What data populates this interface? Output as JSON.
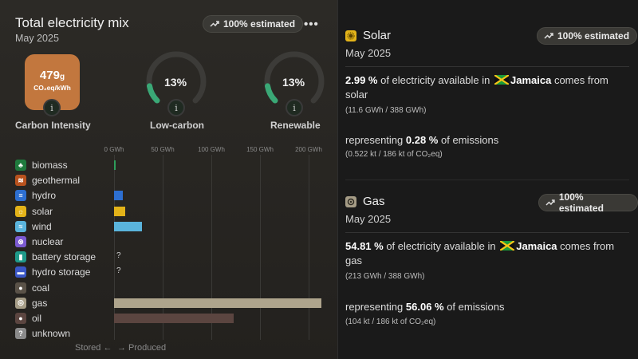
{
  "left": {
    "title": "Total electricity mix",
    "subtitle": "May 2025",
    "estimated_badge": "100% estimated",
    "more_label": "•••",
    "carbon_intensity": {
      "value": "479",
      "unit_g": "g",
      "unit": "CO₂eq/kWh",
      "label": "Carbon Intensity"
    },
    "low_carbon": {
      "value": "13%",
      "label": "Low-carbon",
      "fraction": 0.13
    },
    "renewable": {
      "value": "13%",
      "label": "Renewable",
      "fraction": 0.13
    },
    "info_glyph": "i",
    "footer": {
      "stored": "Stored ←",
      "produced": "→ Produced"
    }
  },
  "chart_data": {
    "type": "bar",
    "orientation": "horizontal",
    "x_ticks": [
      "0 GWh",
      "50 GWh",
      "100 GWh",
      "150 GWh",
      "200 GWh"
    ],
    "xlim": [
      0,
      212
    ],
    "categories": [
      "biomass",
      "geothermal",
      "hydro",
      "solar",
      "wind",
      "nuclear",
      "battery storage",
      "hydro storage",
      "coal",
      "gas",
      "oil",
      "unknown"
    ],
    "values": [
      0.5,
      0,
      9,
      11.6,
      29,
      0,
      null,
      null,
      0,
      213,
      123,
      0
    ],
    "value_labels": [
      "",
      "",
      "",
      "",
      "",
      "",
      "?",
      "?",
      "",
      "",
      "",
      ""
    ],
    "colors": [
      "#1f7a3d",
      "#b8521e",
      "#2d6fd1",
      "#e3b319",
      "#5ab4dc",
      "#7b5ad1",
      "#1f9a8a",
      "#3a57c7",
      "#5a5248",
      "#a59c86",
      "#5b4540",
      "#8a8a8a"
    ],
    "bar_colors": [
      "#2e9d5b",
      "#b8521e",
      "#2d6fd1",
      "#e3b319",
      "#5ab4dc",
      "#7b5ad1",
      "#1f9a8a",
      "#3a57c7",
      "#5a5248",
      "#aea48c",
      "#5b4540",
      "#8a8a8a"
    ]
  },
  "solar": {
    "title": "Solar",
    "subtitle": "May 2025",
    "badge": "100% estimated",
    "pct": "2.99 %",
    "text1": " of electricity available in ",
    "country": "Jamaica",
    "text2": " comes from solar",
    "detail": "(11.6 GWh / 388 GWh)",
    "emissions_pre": "representing ",
    "emissions_pct": "0.28 %",
    "emissions_post": " of emissions",
    "emissions_detail": "(0.522 kt / 186 kt of CO₂eq)"
  },
  "gas": {
    "title": "Gas",
    "subtitle": "May 2025",
    "badge": "100% estimated",
    "pct": "54.81 %",
    "text1": " of electricity available in ",
    "country": "Jamaica",
    "text2": " comes from gas",
    "detail": "(213 GWh / 388 GWh)",
    "emissions_pre": "representing ",
    "emissions_pct": "56.06 %",
    "emissions_post": " of emissions",
    "emissions_detail": "(104 kt / 186 kt of CO₂eq)"
  }
}
